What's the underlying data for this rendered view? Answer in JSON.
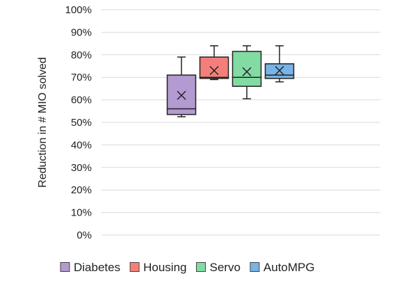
{
  "chart_data": {
    "type": "box",
    "ylabel": "Reduction in # MIO solved",
    "ylim": [
      0,
      100
    ],
    "yticks": [
      "0%",
      "10%",
      "20%",
      "30%",
      "40%",
      "50%",
      "60%",
      "70%",
      "80%",
      "90%",
      "100%"
    ],
    "grid": true,
    "legend_position": "bottom",
    "series": [
      {
        "name": "Diabetes",
        "color": "#b39ad1",
        "min": 52.5,
        "q1": 53.5,
        "median": 56,
        "q3": 71,
        "max": 79,
        "mean": 62
      },
      {
        "name": "Housing",
        "color": "#f47f7a",
        "min": 69,
        "q1": 69.5,
        "median": 70,
        "q3": 79,
        "max": 84,
        "mean": 73
      },
      {
        "name": "Servo",
        "color": "#82dba3",
        "min": 60.5,
        "q1": 66,
        "median": 70,
        "q3": 81.5,
        "max": 84,
        "mean": 72.5
      },
      {
        "name": "AutoMPG",
        "color": "#7ab3e6",
        "min": 68,
        "q1": 69.5,
        "median": 71,
        "q3": 76,
        "max": 84,
        "mean": 73
      }
    ]
  }
}
